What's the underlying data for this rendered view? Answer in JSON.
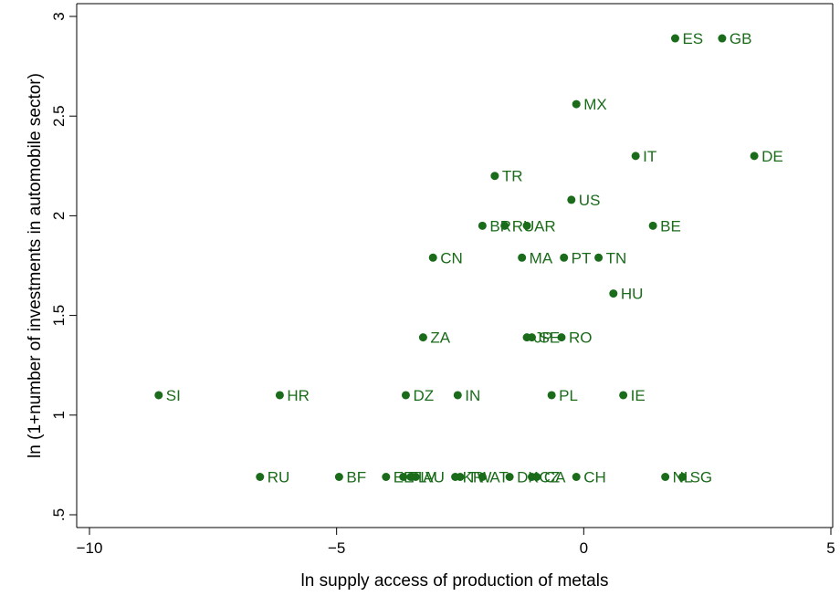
{
  "chart_data": {
    "type": "scatter",
    "title": "",
    "xlabel": "ln supply access of production of metals",
    "ylabel": "ln (1+number of investments in automobile sector)",
    "xlim": [
      -10,
      5
    ],
    "ylim": [
      0.5,
      3
    ],
    "x_ticks": [
      -10,
      -5,
      0,
      5
    ],
    "x_tick_labels": [
      "−10",
      "−5",
      "0",
      "5"
    ],
    "y_ticks": [
      0.5,
      1,
      1.5,
      2,
      2.5,
      3
    ],
    "y_tick_labels": [
      ".5",
      "1",
      "1.5",
      "2",
      "2.5",
      "3"
    ],
    "grid": false,
    "marker_color": "#1a6b1a",
    "points": [
      {
        "label": "ES",
        "x": 1.85,
        "y": 2.89
      },
      {
        "label": "GB",
        "x": 2.8,
        "y": 2.89
      },
      {
        "label": "MX",
        "x": -0.15,
        "y": 2.56
      },
      {
        "label": "IT",
        "x": 1.05,
        "y": 2.3
      },
      {
        "label": "DE",
        "x": 3.45,
        "y": 2.3
      },
      {
        "label": "TR",
        "x": -1.8,
        "y": 2.2
      },
      {
        "label": "US",
        "x": -0.25,
        "y": 2.08
      },
      {
        "label": "BR",
        "x": -2.05,
        "y": 1.95
      },
      {
        "label": "RU",
        "x": -1.6,
        "y": 1.95
      },
      {
        "label": "AR",
        "x": -1.15,
        "y": 1.95
      },
      {
        "label": "BE",
        "x": 1.4,
        "y": 1.95
      },
      {
        "label": "CN",
        "x": -3.05,
        "y": 1.79
      },
      {
        "label": "MA",
        "x": -1.25,
        "y": 1.79
      },
      {
        "label": "PT",
        "x": -0.4,
        "y": 1.79
      },
      {
        "label": "TN",
        "x": 0.3,
        "y": 1.79
      },
      {
        "label": "HU",
        "x": 0.6,
        "y": 1.61
      },
      {
        "label": "ZA",
        "x": -3.25,
        "y": 1.39
      },
      {
        "label": "JP",
        "x": -1.15,
        "y": 1.39
      },
      {
        "label": "SE",
        "x": -1.05,
        "y": 1.39
      },
      {
        "label": "RO",
        "x": -0.45,
        "y": 1.39
      },
      {
        "label": "SI",
        "x": -8.6,
        "y": 1.1
      },
      {
        "label": "HR",
        "x": -6.15,
        "y": 1.1
      },
      {
        "label": "DZ",
        "x": -3.6,
        "y": 1.1
      },
      {
        "label": "IN",
        "x": -2.55,
        "y": 1.1
      },
      {
        "label": "PL",
        "x": -0.65,
        "y": 1.1
      },
      {
        "label": "IE",
        "x": 0.8,
        "y": 1.1
      },
      {
        "label": "RU",
        "x": -6.55,
        "y": 0.69
      },
      {
        "label": "BF",
        "x": -4.95,
        "y": 0.69
      },
      {
        "label": "EE",
        "x": -4.0,
        "y": 0.69
      },
      {
        "label": "FI",
        "x": -3.65,
        "y": 0.69
      },
      {
        "label": "LV",
        "x": -3.5,
        "y": 0.69
      },
      {
        "label": "AU",
        "x": -3.4,
        "y": 0.69
      },
      {
        "label": "KR",
        "x": -2.6,
        "y": 0.69
      },
      {
        "label": "TW",
        "x": -2.5,
        "y": 0.69
      },
      {
        "label": "AT",
        "x": -2.05,
        "y": 0.69
      },
      {
        "label": "DK",
        "x": -1.5,
        "y": 0.69
      },
      {
        "label": "CZ",
        "x": -1.05,
        "y": 0.69
      },
      {
        "label": "CA",
        "x": -0.95,
        "y": 0.69
      },
      {
        "label": "CH",
        "x": -0.15,
        "y": 0.69
      },
      {
        "label": "NL",
        "x": 1.65,
        "y": 0.69
      },
      {
        "label": "SG",
        "x": 2.0,
        "y": 0.69
      }
    ]
  }
}
